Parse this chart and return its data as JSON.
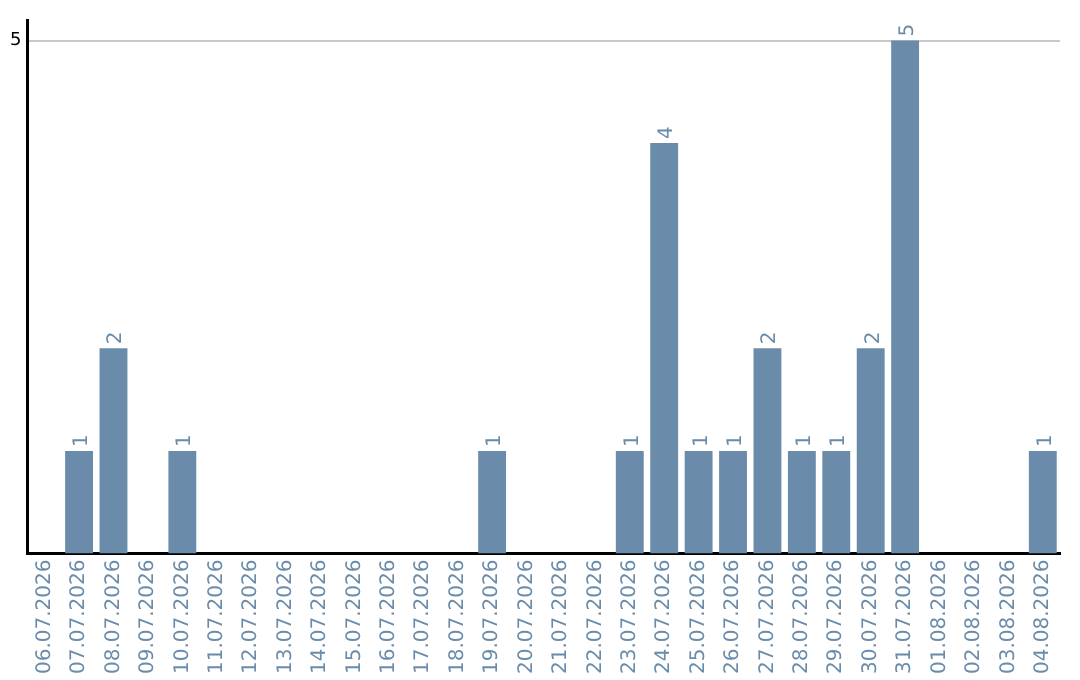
{
  "chart_data": {
    "type": "bar",
    "categories": [
      "06.07.2026",
      "07.07.2026",
      "08.07.2026",
      "09.07.2026",
      "10.07.2026",
      "11.07.2026",
      "12.07.2026",
      "13.07.2026",
      "14.07.2026",
      "15.07.2026",
      "16.07.2026",
      "17.07.2026",
      "18.07.2026",
      "19.07.2026",
      "20.07.2026",
      "21.07.2026",
      "22.07.2026",
      "23.07.2026",
      "24.07.2026",
      "25.07.2026",
      "26.07.2026",
      "27.07.2026",
      "28.07.2026",
      "29.07.2026",
      "30.07.2026",
      "31.07.2026",
      "01.08.2026",
      "02.08.2026",
      "03.08.2026",
      "04.08.2026"
    ],
    "values": [
      0,
      1,
      2,
      0,
      1,
      0,
      0,
      0,
      0,
      0,
      0,
      0,
      0,
      1,
      0,
      0,
      0,
      1,
      4,
      1,
      1,
      2,
      1,
      1,
      2,
      5,
      0,
      0,
      0,
      1
    ],
    "value_labels": [
      null,
      "1",
      "2",
      null,
      "1",
      null,
      null,
      null,
      null,
      null,
      null,
      null,
      null,
      "1",
      null,
      null,
      null,
      "1",
      "4",
      "1",
      "1",
      "2",
      "1",
      "1",
      "2",
      "5",
      null,
      null,
      null,
      "1"
    ],
    "color": "#6a8caa",
    "ylim": [
      0,
      5.2
    ],
    "yticks": [
      5
    ],
    "grid": "y",
    "legend": false
  }
}
